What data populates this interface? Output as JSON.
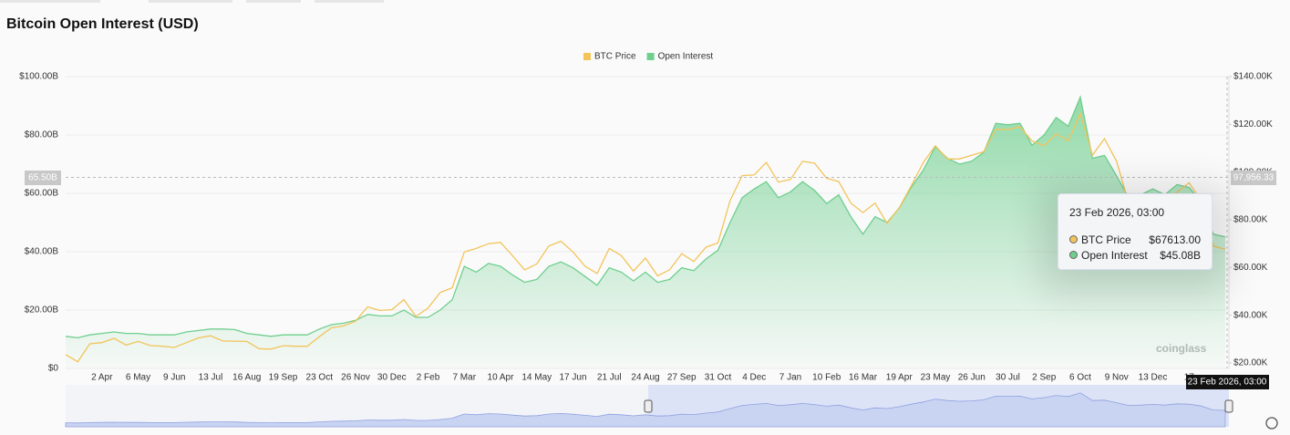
{
  "chart_data": {
    "type": "line",
    "title": "Bitcoin Open Interest (USD)",
    "legend": "top",
    "grid": true,
    "categories": [
      null,
      null,
      null,
      "2 Apr",
      null,
      null,
      "6 May",
      null,
      null,
      "9 Jun",
      null,
      null,
      "13 Jul",
      null,
      null,
      "16 Aug",
      null,
      null,
      "19 Sep",
      null,
      null,
      "23 Oct",
      null,
      null,
      "26 Nov",
      null,
      null,
      "30 Dec",
      null,
      null,
      "2 Feb",
      null,
      null,
      "7 Mar",
      null,
      null,
      "10 Apr",
      null,
      null,
      "14 May",
      null,
      null,
      "17 Jun",
      null,
      null,
      "21 Jul",
      null,
      null,
      "24 Aug",
      null,
      null,
      "27 Sep",
      null,
      null,
      "31 Oct",
      null,
      null,
      "4 Dec",
      null,
      null,
      "7 Jan",
      null,
      null,
      "10 Feb",
      null,
      null,
      "16 Mar",
      null,
      null,
      "19 Apr",
      null,
      null,
      "23 May",
      null,
      null,
      "26 Jun",
      null,
      null,
      "30 Jul",
      null,
      null,
      "2 Sep",
      null,
      null,
      "6 Oct",
      null,
      null,
      "9 Nov",
      null,
      null,
      "13 Dec",
      null,
      null,
      "17",
      null,
      null,
      null
    ],
    "series": [
      {
        "name": "BTC Price",
        "color": "#f2c45a",
        "axis": "y2",
        "values": [
          23.5,
          20.5,
          28,
          28.5,
          30.3,
          27.5,
          29,
          27.3,
          27,
          26.5,
          28.5,
          30.5,
          31.4,
          29.2,
          29.1,
          29,
          26,
          25.8,
          27.2,
          27,
          27,
          31,
          34.7,
          35.5,
          37.5,
          43.5,
          42,
          42.3,
          46.5,
          39.5,
          43,
          49.5,
          51.5,
          66.5,
          68,
          70,
          70.5,
          64.9,
          59,
          61.5,
          69,
          71,
          66.5,
          60.5,
          57.5,
          68,
          65,
          58.5,
          64,
          56.5,
          59,
          65.8,
          62.5,
          68.5,
          70.3,
          88,
          98.5,
          98.8,
          104,
          95.8,
          96.9,
          104.5,
          103.7,
          97.4,
          96,
          87,
          83,
          87,
          78.5,
          85,
          94.2,
          104,
          111,
          105.5,
          105.5,
          107,
          108.5,
          118,
          117.8,
          119,
          113,
          111,
          116,
          113,
          124.5,
          107,
          114,
          104.5,
          87,
          86.5,
          90.2,
          87.5,
          91.5,
          95.5,
          88,
          69,
          67.6
        ]
      },
      {
        "name": "Open Interest",
        "color": "#6fcf8f",
        "values": [
          11,
          10.5,
          11.5,
          12,
          12.5,
          12,
          12,
          11.5,
          11.5,
          11.5,
          12.5,
          13,
          13.5,
          13.5,
          13.3,
          12,
          11.5,
          11,
          11.5,
          11.5,
          11.5,
          13.5,
          15,
          15.5,
          16.5,
          18.5,
          18,
          18,
          20,
          17.5,
          17.5,
          20,
          23.5,
          35,
          33,
          36,
          35,
          32,
          29.5,
          30.5,
          35,
          36.5,
          34.5,
          31.5,
          28.5,
          34.5,
          33,
          30,
          33,
          29.5,
          30.5,
          34.5,
          33.5,
          37.5,
          40.5,
          50,
          58.5,
          61.5,
          64,
          58.5,
          60.5,
          64,
          61,
          56.5,
          59.5,
          52,
          46,
          52,
          50,
          55,
          62,
          68,
          76,
          72,
          70,
          71,
          74,
          84,
          83.5,
          84,
          76.5,
          80,
          86,
          83,
          93,
          72,
          73,
          66,
          58.5,
          59.5,
          61.5,
          59.5,
          63,
          62,
          57,
          46,
          45.08
        ]
      }
    ],
    "ylim": [
      0,
      100
    ],
    "yticks": [
      {
        "value": 0,
        "label": "$0"
      },
      {
        "value": 20,
        "label": "$20.00B"
      },
      {
        "value": 40,
        "label": "$40.00B"
      },
      {
        "value": 60,
        "label": "$60.00B"
      },
      {
        "value": 80,
        "label": "$80.00B"
      },
      {
        "value": 100,
        "label": "$100.00B"
      }
    ],
    "y2lim": [
      17.7,
      140
    ],
    "y2ticks": [
      {
        "value": 20,
        "label": "$20.00K"
      },
      {
        "value": 40,
        "label": "$40.00K"
      },
      {
        "value": 60,
        "label": "$60.00K"
      },
      {
        "value": 80,
        "label": "$80.00K"
      },
      {
        "value": 100,
        "label": "$100.00K"
      },
      {
        "value": 120,
        "label": "$120.00K"
      },
      {
        "value": 140,
        "label": "$140.00K"
      }
    ],
    "crosshair": {
      "y_label": "65.50B",
      "y2_label": "97,956.33",
      "x_label": "23 Feb 2026, 03:00"
    },
    "watermark": "coinglass"
  },
  "tooltip": {
    "title": "23 Feb 2026, 03:00",
    "rows": [
      {
        "name": "BTC Price",
        "value": "$67613.00"
      },
      {
        "name": "Open Interest",
        "value": "$45.08B"
      }
    ]
  }
}
